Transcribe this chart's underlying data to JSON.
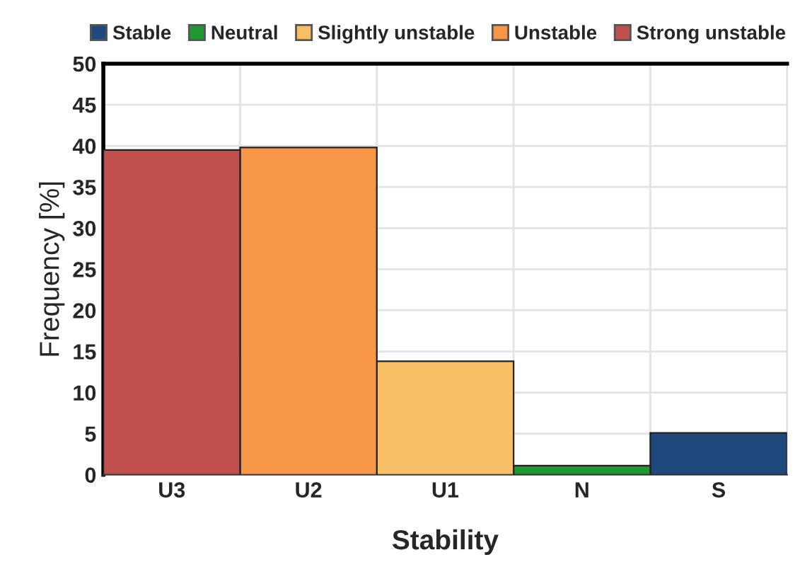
{
  "chart_data": {
    "type": "bar",
    "xlabel": "Stability",
    "ylabel": "Frequency [%]",
    "categories": [
      "U3",
      "U2",
      "U1",
      "N",
      "S"
    ],
    "series": [
      {
        "name": "Stable",
        "color": "#1f497d",
        "values": [
          null,
          null,
          null,
          null,
          5.1
        ]
      },
      {
        "name": "Neutral",
        "color": "#1e9a31",
        "values": [
          null,
          null,
          null,
          1.1,
          null
        ]
      },
      {
        "name": "Slightly unstable",
        "color": "#f9bf66",
        "values": [
          null,
          null,
          13.8,
          null,
          null
        ]
      },
      {
        "name": "Unstable",
        "color": "#f79646",
        "values": [
          null,
          39.8,
          null,
          null,
          null
        ]
      },
      {
        "name": "Strong unstable",
        "color": "#c0504d",
        "values": [
          39.5,
          null,
          null,
          null,
          null
        ]
      }
    ],
    "ylim": [
      0,
      50
    ],
    "yticks": [
      0,
      5,
      10,
      15,
      20,
      25,
      30,
      35,
      40,
      45,
      50
    ],
    "grid": true,
    "legend": "top"
  }
}
